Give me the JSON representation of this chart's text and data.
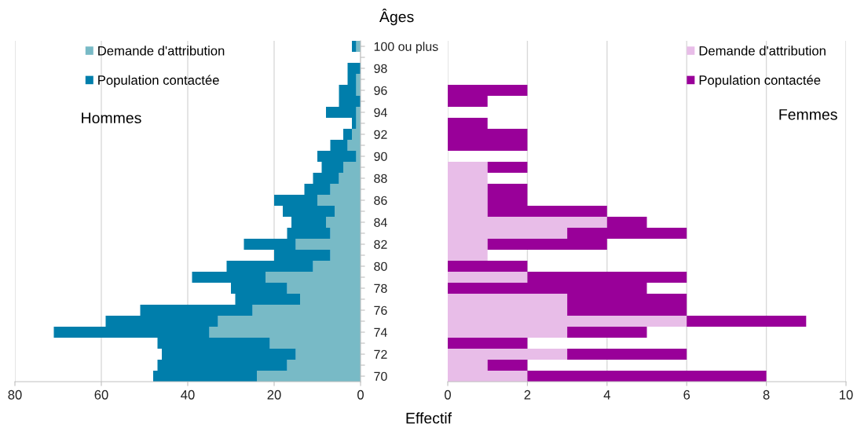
{
  "chart_data": [
    {
      "type": "bar",
      "orientation": "horizontal",
      "stacked": true,
      "categories": [
        null,
        null,
        null,
        null,
        null,
        null,
        null,
        null,
        null,
        null,
        null,
        null,
        null,
        null,
        null,
        null,
        null,
        null,
        null,
        null,
        null,
        null,
        null,
        null,
        null,
        null,
        null,
        null,
        null,
        null,
        null
      ],
      "series": [
        {
          "name": "Demande d'attribution",
          "color": "#78bac6",
          "values": [
            1,
            0,
            0,
            1,
            1,
            0,
            1,
            1,
            2,
            3,
            1,
            4,
            5,
            7,
            10,
            6,
            8,
            7,
            15,
            7,
            11,
            22,
            17,
            14,
            25,
            33,
            35,
            21,
            15,
            17,
            24
          ]
        },
        {
          "name": "Population contactée",
          "color": "#007eab",
          "values": [
            1,
            0,
            3,
            2,
            4,
            5,
            7,
            1,
            2,
            4,
            9,
            5,
            6,
            6,
            10,
            12,
            8,
            10,
            12,
            13,
            20,
            17,
            13,
            15,
            26,
            26,
            36,
            26,
            31,
            30,
            24
          ]
        }
      ],
      "xlim": [
        80,
        0
      ],
      "xticks": [
        0,
        20,
        40,
        60,
        80
      ],
      "grid": "x",
      "legend": "top left",
      "annotations": [
        "Hommes"
      ]
    },
    {
      "type": "bar",
      "orientation": "horizontal",
      "stacked": true,
      "xlabel": "Effectif",
      "ylabel": "Âges",
      "categories": [
        "100 ou plus",
        null,
        "98",
        null,
        "96",
        null,
        "94",
        null,
        "92",
        null,
        "90",
        null,
        "88",
        null,
        "86",
        null,
        "84",
        null,
        "82",
        null,
        "80",
        null,
        "78",
        null,
        "76",
        null,
        "74",
        null,
        "72",
        null,
        "70"
      ],
      "series": [
        {
          "name": "Demande d'attribution",
          "color": "#e8bde8",
          "values": [
            0,
            0,
            0,
            0,
            0,
            0,
            0,
            0,
            0,
            0,
            0,
            1,
            1,
            1,
            1,
            1,
            4,
            3,
            1,
            1,
            0,
            2,
            0,
            3,
            3,
            6,
            3,
            0,
            3,
            1,
            2
          ]
        },
        {
          "name": "Population contactée",
          "color": "#990099",
          "values": [
            0,
            0,
            0,
            0,
            2,
            1,
            0,
            1,
            2,
            2,
            0,
            1,
            0,
            1,
            1,
            3,
            1,
            3,
            3,
            0,
            2,
            4,
            5,
            3,
            3,
            3,
            2,
            2,
            3,
            1,
            6
          ]
        }
      ],
      "xlim": [
        0,
        10
      ],
      "xticks": [
        0,
        2,
        4,
        6,
        8,
        10
      ],
      "grid": "x",
      "legend": "top right",
      "annotations": [
        "Femmes"
      ]
    }
  ]
}
